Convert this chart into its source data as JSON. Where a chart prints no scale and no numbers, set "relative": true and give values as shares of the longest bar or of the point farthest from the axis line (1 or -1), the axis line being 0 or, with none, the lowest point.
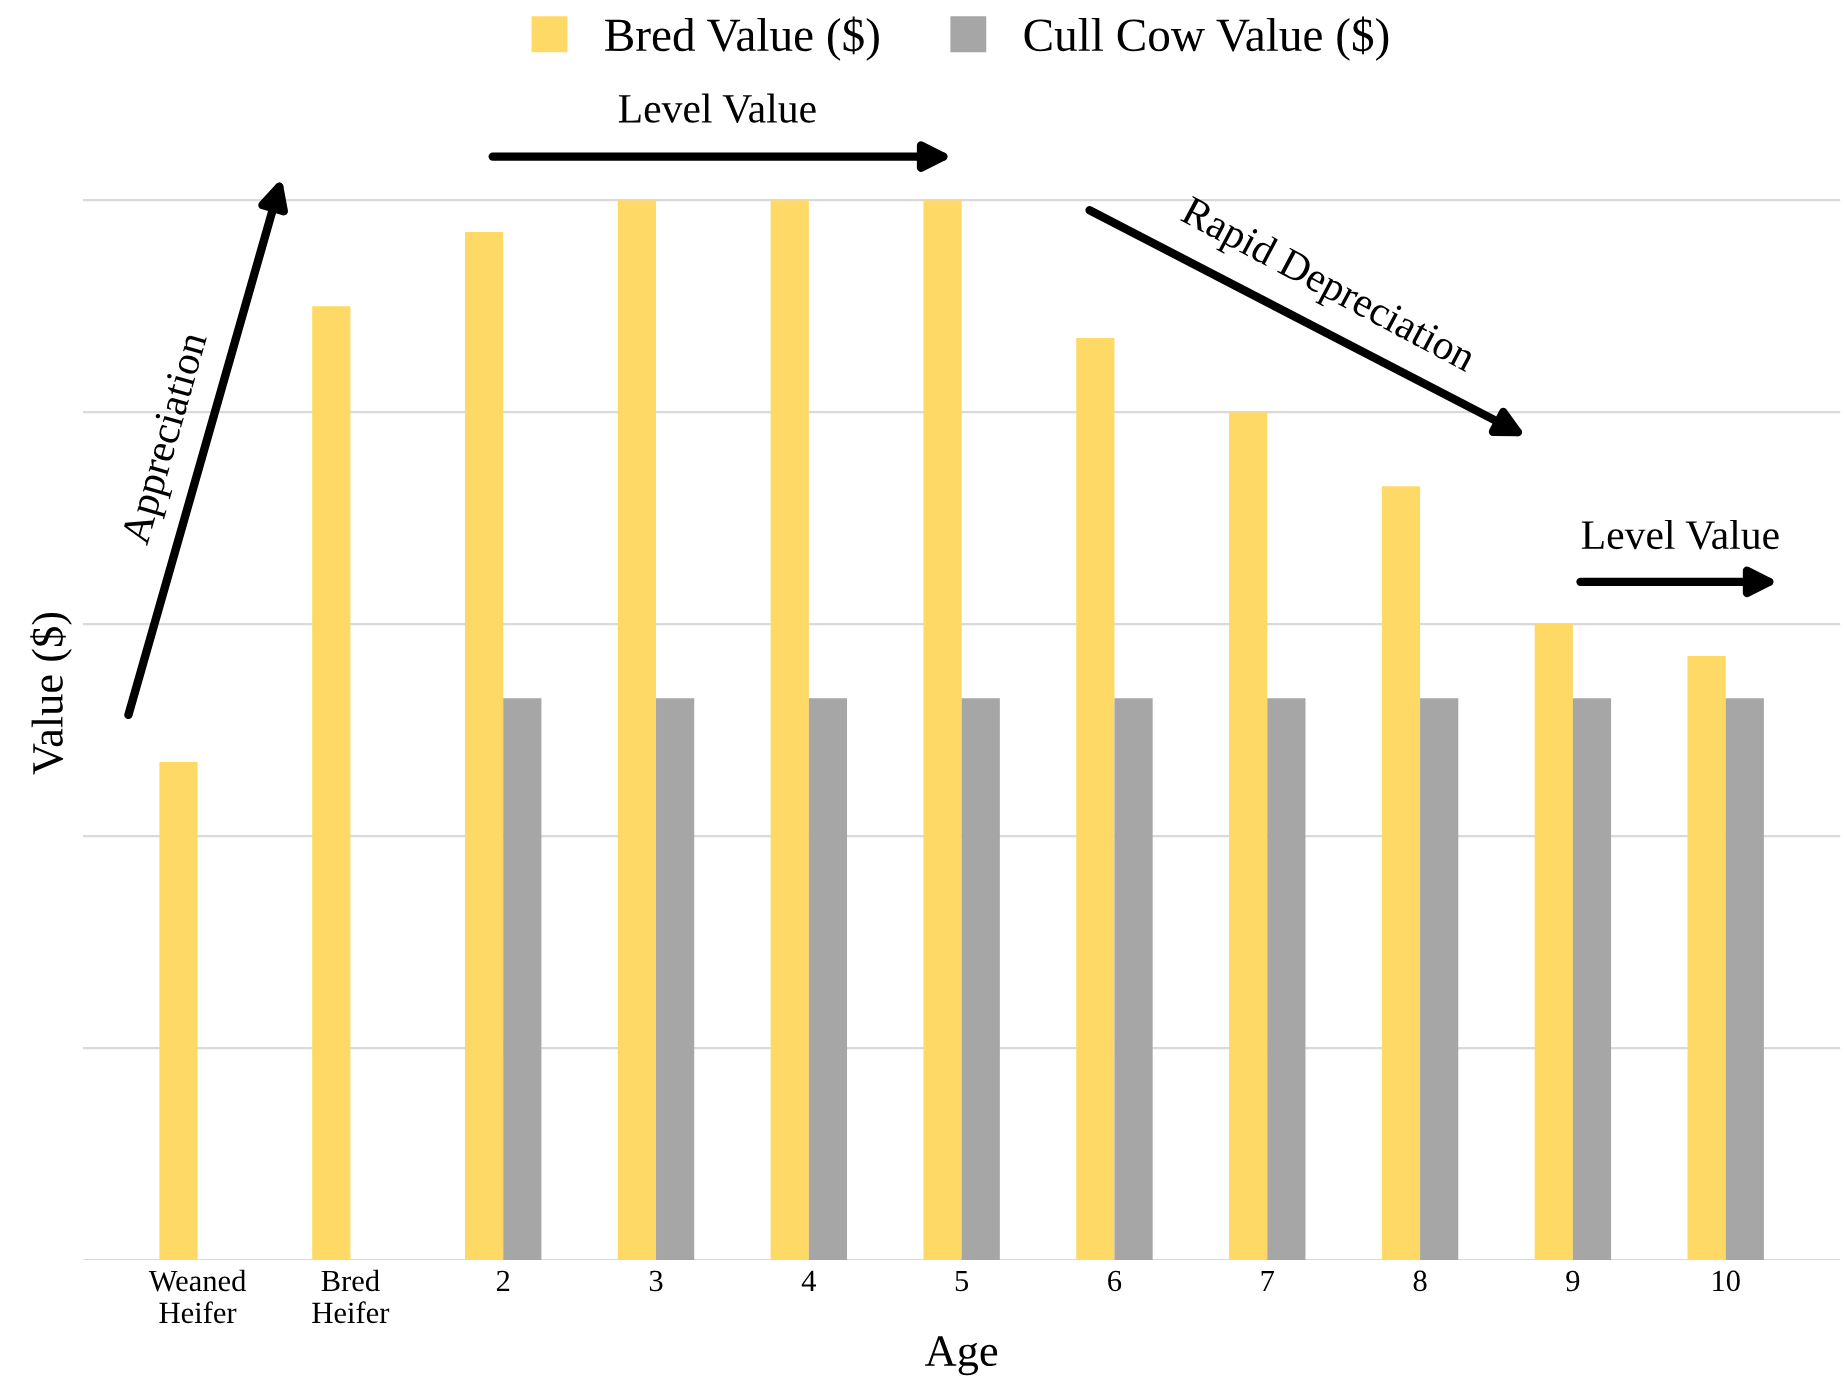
{
  "chart_data": {
    "type": "bar",
    "relative": true,
    "xlabel": "Age",
    "ylabel": "Value ($)",
    "categories": [
      "Weaned\nHeifer",
      "Bred\nHeifer",
      "2",
      "3",
      "4",
      "5",
      "6",
      "7",
      "8",
      "9",
      "10"
    ],
    "series": [
      {
        "name": "Bred Value ($)",
        "color": "#ffd966",
        "values": [
          0.47,
          0.9,
          0.97,
          1,
          1,
          1,
          0.87,
          0.8,
          0.73,
          0.6,
          0.57
        ]
      },
      {
        "name": "Cull Cow Value ($)",
        "color": "#a6a6a6",
        "values": [
          null,
          null,
          0.53,
          0.53,
          0.53,
          0.53,
          0.53,
          0.53,
          0.53,
          0.53,
          0.53
        ]
      }
    ],
    "annotations": [
      "Appreciation",
      "Level Value",
      "Rapid Depreciation",
      "Level Value"
    ],
    "grid": "y",
    "legend": "top"
  }
}
